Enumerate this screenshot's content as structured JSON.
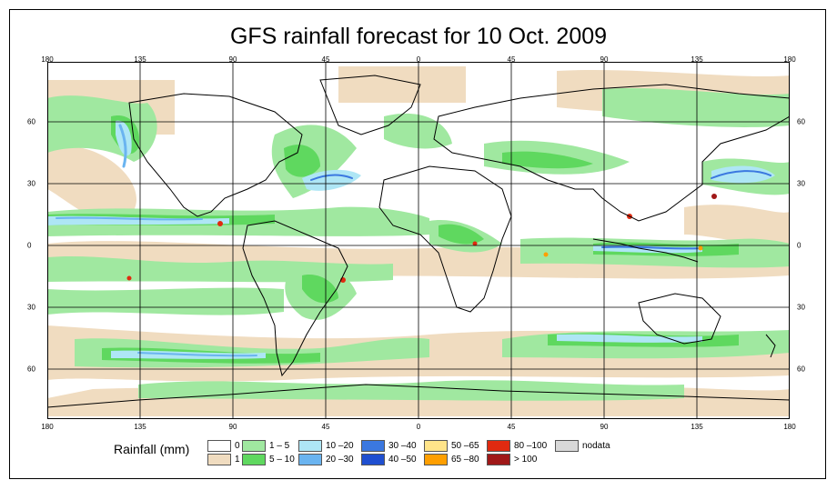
{
  "title": "GFS rainfall forecast for 10 Oct. 2009",
  "lon_ticks": [
    "180",
    "135",
    "90",
    "45",
    "0",
    "45",
    "90",
    "135",
    "180"
  ],
  "lat_ticks": [
    "60",
    "30",
    "0",
    "30",
    "60"
  ],
  "legend": {
    "title": "Rainfall (mm)",
    "items": [
      {
        "label": "0",
        "color": "#ffffff"
      },
      {
        "label": "1",
        "color": "#f0dcc0"
      },
      {
        "label": "1 – 5",
        "color": "#a0e8a0"
      },
      {
        "label": "5 – 10",
        "color": "#5fd85f"
      },
      {
        "label": "10 –20",
        "color": "#aee6f5"
      },
      {
        "label": "20 –30",
        "color": "#6ab4f0"
      },
      {
        "label": "30 –40",
        "color": "#3b78e0"
      },
      {
        "label": "40 –50",
        "color": "#1f4fd0"
      },
      {
        "label": "50 –65",
        "color": "#ffe48a"
      },
      {
        "label": "65 –80",
        "color": "#ff9f00"
      },
      {
        "label": "80 –100",
        "color": "#e02a10"
      },
      {
        "label": "> 100",
        "color": "#a01818"
      },
      {
        "label": "nodata",
        "color": "#d8d8d8"
      }
    ]
  }
}
